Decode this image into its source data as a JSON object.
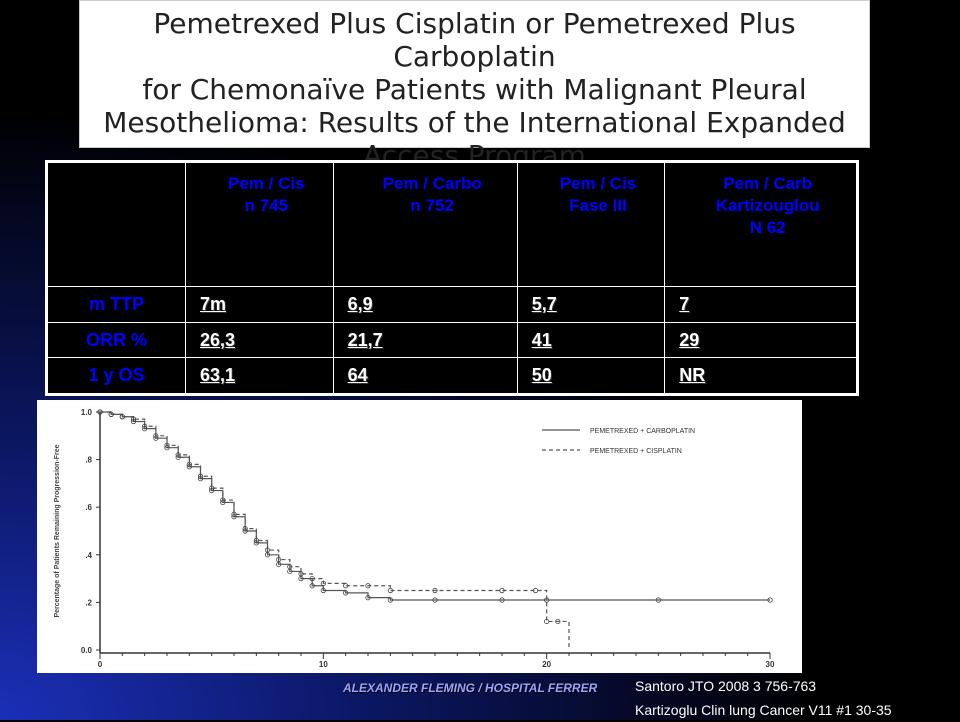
{
  "title": "Pemetrexed Plus Cisplatin or Pemetrexed Plus Carboplatin\nfor Chemonaïve Patients with Malignant Pleural\nMesothelioma: Results of the International Expanded\nAccess Program",
  "table": {
    "headers": [
      [
        "Pem / Cis",
        "n 745"
      ],
      [
        "Pem / Carbo",
        "n 752"
      ],
      [
        "Pem / Cis",
        "Fase III"
      ],
      [
        "Pem / Carb",
        "Kartizouglou",
        "N 62"
      ]
    ],
    "rows": [
      {
        "label": "m TTP",
        "values": [
          "7m",
          "6,9",
          "5,7",
          "7"
        ]
      },
      {
        "label": "ORR %",
        "values": [
          "26,3",
          "21,7",
          "41",
          "29"
        ]
      },
      {
        "label": "1 y OS",
        "values": [
          "63,1",
          "64",
          "50",
          "NR"
        ]
      }
    ]
  },
  "chart_data": {
    "type": "line",
    "ylabel": "Percentage of Patients Remaining Progression-Free",
    "xlim": [
      0,
      30
    ],
    "ylim": [
      0,
      1.0
    ],
    "xticks": [
      "0",
      "10",
      "20",
      "30"
    ],
    "yticks": [
      "0.0",
      ".2",
      ".4",
      ".6",
      ".8",
      "1.0"
    ],
    "legend_position": "top-right",
    "series": [
      {
        "name": "PEMETREXED + CARBOPLATIN",
        "style": "solid",
        "x": [
          0,
          0.5,
          1,
          1.5,
          2,
          2.5,
          3,
          3.5,
          4,
          4.5,
          5,
          5.5,
          6,
          6.5,
          7,
          7.5,
          8,
          8.5,
          9,
          9.5,
          10,
          11,
          12,
          13,
          15,
          18,
          20,
          25,
          30
        ],
        "y": [
          1.0,
          0.99,
          0.98,
          0.96,
          0.93,
          0.89,
          0.85,
          0.81,
          0.77,
          0.72,
          0.67,
          0.62,
          0.56,
          0.5,
          0.45,
          0.4,
          0.36,
          0.33,
          0.3,
          0.27,
          0.25,
          0.24,
          0.22,
          0.21,
          0.21,
          0.21,
          0.21,
          0.21,
          0.21
        ]
      },
      {
        "name": "PEMETREXED + CISPLATIN",
        "style": "dashed",
        "x": [
          0,
          0.5,
          1,
          1.5,
          2,
          2.5,
          3,
          3.5,
          4,
          4.5,
          5,
          5.5,
          6,
          6.5,
          7,
          7.5,
          8,
          8.5,
          9,
          9.5,
          10,
          11,
          12,
          13,
          15,
          18,
          19.5,
          20,
          20.5,
          21
        ],
        "y": [
          1.0,
          0.99,
          0.98,
          0.97,
          0.94,
          0.9,
          0.86,
          0.82,
          0.78,
          0.73,
          0.68,
          0.63,
          0.57,
          0.51,
          0.46,
          0.42,
          0.38,
          0.35,
          0.32,
          0.3,
          0.28,
          0.27,
          0.27,
          0.25,
          0.25,
          0.25,
          0.25,
          0.12,
          0.12,
          0.0
        ]
      }
    ]
  },
  "citation": [
    "Santoro JTO 2008 3 756-763",
    "Kartizoglu  Clin lung Cancer V11 #1 30-35"
  ],
  "footer": "ALEXANDER FLEMING / HOSPITAL FERRER"
}
